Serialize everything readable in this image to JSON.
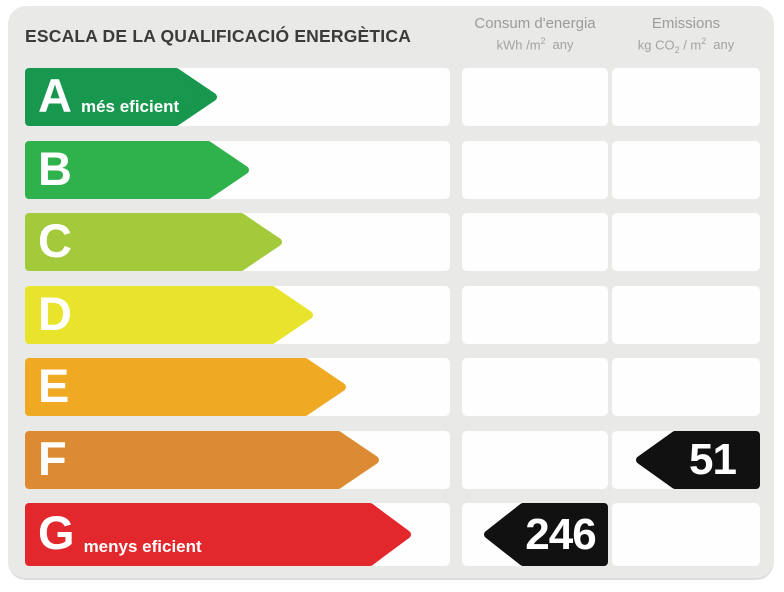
{
  "title": "ESCALA DE LA QUALIFICACIÓ ENERGÈTICA",
  "columns": {
    "consum": {
      "title": "Consum d'energia",
      "unit_main": "kWh /m",
      "unit_sup": "2",
      "unit_tail": "any"
    },
    "emissions": {
      "title": "Emissions",
      "unit_pre": "kg CO",
      "unit_sub": "2",
      "unit_mid": " / m",
      "unit_sup": "2",
      "unit_tail": "any"
    }
  },
  "tag_color": "#111111",
  "rows": [
    {
      "letter": "A",
      "note": "més eficient",
      "color": "#18974e",
      "arrow_width": 193,
      "consum_value": null,
      "emissions_value": null
    },
    {
      "letter": "B",
      "note": "",
      "color": "#2fb24c",
      "arrow_width": 225,
      "consum_value": null,
      "emissions_value": null
    },
    {
      "letter": "C",
      "note": "",
      "color": "#a2ca3b",
      "arrow_width": 258,
      "consum_value": null,
      "emissions_value": null
    },
    {
      "letter": "D",
      "note": "",
      "color": "#e8e32b",
      "arrow_width": 289,
      "consum_value": null,
      "emissions_value": null
    },
    {
      "letter": "E",
      "note": "",
      "color": "#efa923",
      "arrow_width": 322,
      "consum_value": null,
      "emissions_value": null
    },
    {
      "letter": "F",
      "note": "",
      "color": "#dd8b33",
      "arrow_width": 355,
      "consum_value": null,
      "emissions_value": "51"
    },
    {
      "letter": "G",
      "note": "menys eficient",
      "color": "#e2282d",
      "arrow_width": 387,
      "consum_value": "246",
      "emissions_value": null
    }
  ],
  "chart_data": {
    "type": "bar",
    "title": "ESCALA DE LA QUALIFICACIÓ ENERGÈTICA",
    "categories": [
      "A",
      "B",
      "C",
      "D",
      "E",
      "F",
      "G"
    ],
    "category_colors": [
      "#18974e",
      "#2fb24c",
      "#a2ca3b",
      "#e8e32b",
      "#efa923",
      "#dd8b33",
      "#e2282d"
    ],
    "series": [
      {
        "name": "Consum d'energia (kWh /m2 any)",
        "values": [
          null,
          null,
          null,
          null,
          null,
          null,
          246
        ]
      },
      {
        "name": "Emissions (kg CO2 / m2 any)",
        "values": [
          null,
          null,
          null,
          null,
          null,
          51,
          null
        ]
      }
    ],
    "annotations": [
      "A = més eficient",
      "G = menys eficient"
    ],
    "assigned_ratings": {
      "consum": "G",
      "emissions": "F"
    },
    "legend_position": "top",
    "grid": false
  }
}
